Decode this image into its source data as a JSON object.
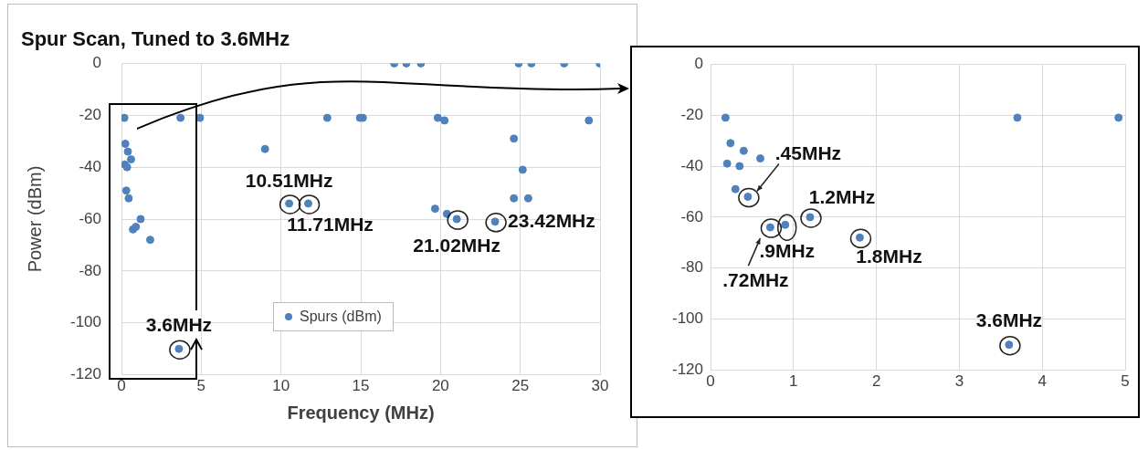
{
  "chart_data": [
    {
      "type": "scatter",
      "title": "Spur Scan, Tuned to 3.6MHz",
      "xlabel": "Frequency (MHz)",
      "ylabel": "Power (dBm)",
      "xlim": [
        0,
        30
      ],
      "xticks": [
        0,
        5,
        10,
        15,
        20,
        25,
        30
      ],
      "ylim": [
        -120,
        0
      ],
      "yticks": [
        -120,
        -100,
        -80,
        -60,
        -40,
        -20,
        0
      ],
      "grid": true,
      "legend": "bottom",
      "marker": "circle",
      "series": [
        {
          "name": "Spurs (dBm)",
          "color": "#4f81bd",
          "x": [
            0.18,
            0.24,
            0.4,
            0.6,
            0.2,
            0.35,
            0.3,
            0.45,
            0.72,
            0.9,
            1.2,
            1.8,
            3.6,
            3.7,
            4.92,
            9.0,
            10.51,
            11.71,
            12.9,
            14.95,
            15.13,
            17.1,
            17.86,
            18.77,
            19.66,
            19.83,
            20.25,
            20.4,
            21.02,
            23.42,
            24.6,
            24.6,
            24.9,
            25.15,
            25.5,
            25.7,
            27.75,
            29.3,
            29.98
          ],
          "values": [
            -21,
            -31,
            -34,
            -37,
            -39,
            -40,
            -49,
            -52,
            -64,
            -63,
            -60,
            -68,
            -110,
            -21,
            -21,
            -33,
            -54,
            -54,
            -21,
            -21,
            -21,
            0,
            0,
            0,
            -56,
            -21,
            -22,
            -58,
            -60,
            -61,
            -29,
            -52,
            0,
            -41,
            -52,
            0,
            0,
            -22,
            0
          ]
        }
      ],
      "annotations": [
        {
          "text": "10.51MHz",
          "x": 10.51,
          "y": -54
        },
        {
          "text": "11.71MHz",
          "x": 11.71,
          "y": -54
        },
        {
          "text": "21.02MHz",
          "x": 21.02,
          "y": -60
        },
        {
          "text": "23.42MHz",
          "x": 23.42,
          "y": -61
        },
        {
          "text": "3.6MHz",
          "x": 3.6,
          "y": -110
        }
      ]
    },
    {
      "type": "scatter",
      "xlim": [
        0,
        5
      ],
      "xticks": [
        0,
        1,
        2,
        3,
        4,
        5
      ],
      "ylim": [
        -120,
        0
      ],
      "yticks": [
        -120,
        -100,
        -80,
        -60,
        -40,
        -20,
        0
      ],
      "grid": true,
      "marker": "circle",
      "series": [
        {
          "color": "#4f81bd",
          "x": [
            0.18,
            0.24,
            0.4,
            0.6,
            0.2,
            0.35,
            0.3,
            0.45,
            0.72,
            0.9,
            1.2,
            1.8,
            3.6,
            3.7,
            4.92
          ],
          "values": [
            -21,
            -31,
            -34,
            -37,
            -39,
            -40,
            -49,
            -52,
            -64,
            -63,
            -60,
            -68,
            -110,
            -21,
            -21
          ]
        }
      ],
      "annotations": [
        {
          "text": ".45MHz",
          "x": 0.45,
          "y": -52
        },
        {
          "text": ".72MHz",
          "x": 0.72,
          "y": -64
        },
        {
          "text": ".9MHz",
          "x": 0.9,
          "y": -63
        },
        {
          "text": "1.2MHz",
          "x": 1.2,
          "y": -60
        },
        {
          "text": "1.8MHz",
          "x": 1.8,
          "y": -68
        },
        {
          "text": "3.6MHz",
          "x": 3.6,
          "y": -110
        }
      ]
    }
  ]
}
